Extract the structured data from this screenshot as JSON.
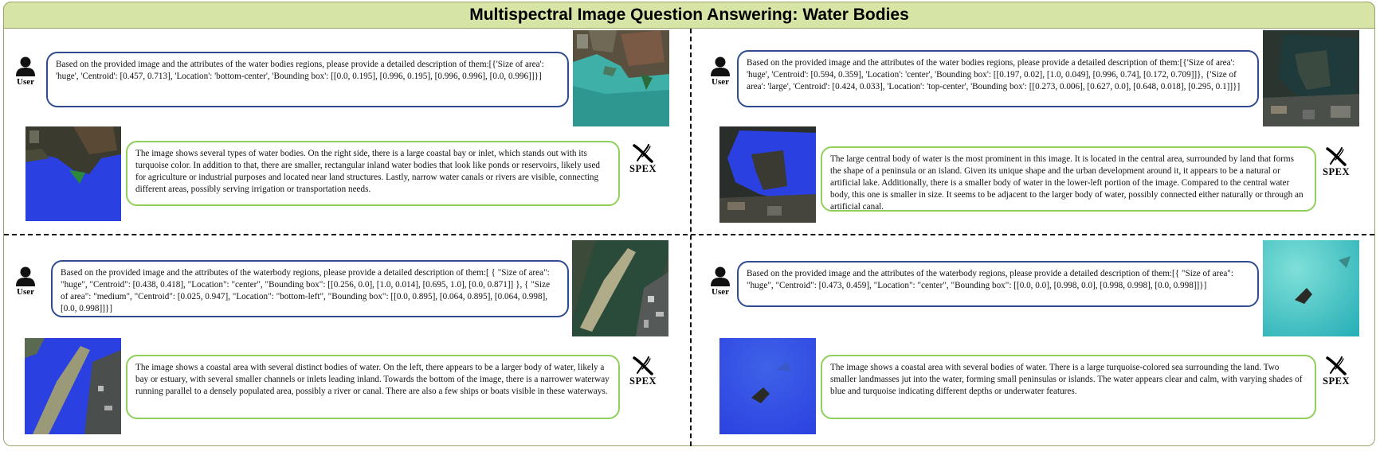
{
  "title": "Multispectral Image Question Answering: Water Bodies",
  "user_label": "User",
  "model_label": "SPEX",
  "panels": [
    {
      "question": "Based on the provided image and the attributes of the water bodies regions, please provide a detailed description of them:[{'Size of area': 'huge', 'Centroid': [0.457, 0.713], 'Location': 'bottom-center', 'Bounding box': [[0.0, 0.195], [0.996, 0.195], [0.996, 0.996], [0.0, 0.996]]}]",
      "answer": "The image shows several types of water bodies. On the right side, there is a large coastal bay or inlet, which stands out with its turquoise color. In addition to that, there are smaller, rectangular inland water bodies that look like ponds or reservoirs, likely used for agriculture or industrial purposes and located near land structures. Lastly, narrow water canals or rivers are visible, connecting different areas, possibly serving irrigation or transportation needs."
    },
    {
      "question": "Based on the provided image and the attributes of the water bodies regions, please provide a detailed description of them:[{'Size of area': 'huge', 'Centroid': [0.594, 0.359], 'Location': 'center', 'Bounding box': [[0.197, 0.02], [1.0, 0.049], [0.996, 0.74], [0.172, 0.709]]}, {'Size of area': 'large', 'Centroid': [0.424, 0.033], 'Location': 'top-center', 'Bounding box': [[0.273, 0.006], [0.627, 0.0], [0.648, 0.018], [0.295, 0.1]]}]",
      "answer": "The large central body of water is the most prominent in this image. It is located in the central area, surrounded by land that forms the shape of a peninsula or an island. Given its unique shape and the urban development around it, it appears to be a natural or artificial lake. Additionally, there is a smaller body of water in the lower-left portion of the image. Compared to the central water body, this one is smaller in size. It seems to be adjacent to the larger body of water, possibly connected either naturally or through an artificial canal."
    },
    {
      "question": "Based on the provided image and the attributes of the waterbody regions, please provide a detailed description of them:[ { \"Size of area\": \"huge\", \"Centroid\": [0.438, 0.418], \"Location\": \"center\",  \"Bounding box\": [[0.256, 0.0], [1.0, 0.014], [0.695, 1.0], [0.0, 0.871]] }, { \"Size of area\": \"medium\", \"Centroid\": [0.025, 0.947], \"Location\": \"bottom-left\", \"Bounding box\": [[0.0, 0.895], [0.064, 0.895], [0.064, 0.998], [0.0, 0.998]]}]",
      "answer": "The image shows a coastal area with several distinct bodies of water. On the left, there appears to be a larger body of water, likely a bay or estuary, with several smaller channels or inlets leading inland. Towards the bottom of the image, there is a narrower waterway running parallel to a densely populated area, possibly a river or canal. There are also a few ships or boats visible in these waterways."
    },
    {
      "question": "Based on the provided image and the attributes of the waterbody regions, please provide a detailed description of them:[{  \"Size of area\": \"huge\", \"Centroid\": [0.473, 0.459], \"Location\": \"center\", \"Bounding box\": [[0.0, 0.0], [0.998, 0.0], [0.998, 0.998], [0.0, 0.998]]}]",
      "answer": "The image shows a coastal area with several bodies of water. There is a large turquoise-colored sea surrounding the land. Two smaller landmasses jut into the water, forming small peninsulas or islands. The water appears clear and calm, with varying shades of blue and turquoise indicating different depths or underwater features."
    }
  ],
  "colors": {
    "title_bg": "#d6e4a6",
    "question_border": "#2f4c8f",
    "answer_border": "#8fcf5a",
    "mask_blue": "#2b40e0"
  }
}
